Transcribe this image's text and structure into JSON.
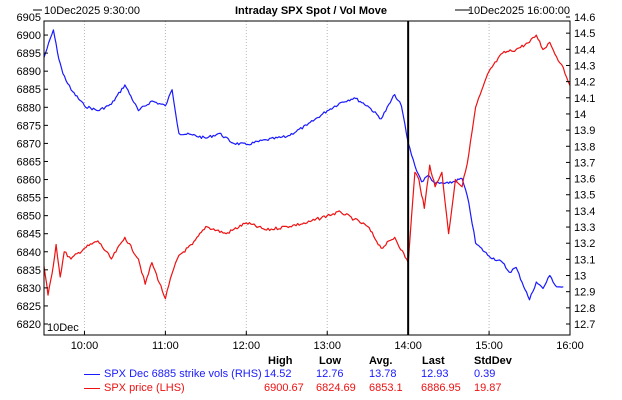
{
  "chart_data": {
    "type": "line",
    "title": "Intraday SPX Spot / Vol Move",
    "start_label": "10Dec2025  9:30:00",
    "end_label": "10Dec2025 16:00:00",
    "date_marker": "10Dec",
    "x_ticks": [
      "10:00",
      "11:00",
      "12:00",
      "13:00",
      "14:00",
      "15:00",
      "16:00"
    ],
    "x_range": [
      "09:30",
      "16:00"
    ],
    "vertical_marker": "14:00",
    "left_axis": {
      "range": [
        6820,
        6905
      ],
      "ticks": [
        6820,
        6825,
        6830,
        6835,
        6840,
        6845,
        6850,
        6855,
        6860,
        6865,
        6870,
        6875,
        6880,
        6885,
        6890,
        6895,
        6900,
        6905
      ]
    },
    "right_axis": {
      "range": [
        12.7,
        14.6
      ],
      "ticks": [
        12.7,
        12.8,
        12.9,
        13,
        13.1,
        13.2,
        13.3,
        13.4,
        13.5,
        13.6,
        13.7,
        13.8,
        13.9,
        14,
        14.1,
        14.2,
        14.3,
        14.4,
        14.5,
        14.6
      ]
    },
    "grid": "vertical dotted",
    "series": [
      {
        "name": "SPX Dec 6885 strike vols (RHS)",
        "axis": "right",
        "color": "#1a1aff",
        "x": [
          "09:30",
          "09:37",
          "09:40",
          "09:44",
          "09:50",
          "10:00",
          "10:10",
          "10:20",
          "10:30",
          "10:40",
          "10:50",
          "11:00",
          "11:05",
          "11:10",
          "11:20",
          "11:30",
          "11:40",
          "11:50",
          "12:00",
          "12:15",
          "12:30",
          "12:45",
          "13:00",
          "13:10",
          "13:20",
          "13:30",
          "13:40",
          "13:50",
          "13:55",
          "14:00",
          "14:05",
          "14:10",
          "14:15",
          "14:20",
          "14:30",
          "14:40",
          "14:45",
          "14:50",
          "15:00",
          "15:10",
          "15:15",
          "15:20",
          "15:30",
          "15:35",
          "15:40",
          "15:45",
          "15:50",
          "15:55"
        ],
        "y": [
          14.35,
          14.52,
          14.38,
          14.25,
          14.15,
          14.05,
          14.02,
          14.06,
          14.18,
          14.02,
          14.08,
          14.05,
          14.15,
          13.88,
          13.87,
          13.85,
          13.88,
          13.82,
          13.81,
          13.84,
          13.86,
          13.93,
          14.02,
          14.07,
          14.1,
          14.05,
          13.97,
          14.12,
          14.05,
          13.82,
          13.68,
          13.58,
          13.62,
          13.57,
          13.57,
          13.6,
          13.45,
          13.2,
          13.12,
          13.08,
          13.02,
          13.05,
          12.85,
          12.96,
          12.92,
          13.0,
          12.93,
          12.93
        ]
      },
      {
        "name": "SPX price (LHS)",
        "axis": "left",
        "color": "#ee1111",
        "x": [
          "09:30",
          "09:33",
          "09:36",
          "09:39",
          "09:42",
          "09:45",
          "09:50",
          "10:00",
          "10:10",
          "10:20",
          "10:30",
          "10:40",
          "10:45",
          "10:50",
          "11:00",
          "11:05",
          "11:10",
          "11:20",
          "11:30",
          "11:45",
          "12:00",
          "12:15",
          "12:30",
          "12:45",
          "13:00",
          "13:10",
          "13:20",
          "13:30",
          "13:40",
          "13:50",
          "14:00",
          "14:05",
          "14:08",
          "14:12",
          "14:16",
          "14:20",
          "14:25",
          "14:30",
          "14:35",
          "14:40",
          "14:45",
          "14:50",
          "15:00",
          "15:10",
          "15:20",
          "15:30",
          "15:35",
          "15:40",
          "15:45",
          "15:50",
          "15:55",
          "16:00"
        ],
        "y": [
          6836,
          6828,
          6834,
          6842,
          6833,
          6840,
          6838,
          6841,
          6843,
          6838,
          6844,
          6838,
          6831,
          6837,
          6827,
          6834,
          6839,
          6842,
          6847,
          6845,
          6848,
          6846,
          6847,
          6848,
          6850,
          6851,
          6849,
          6847,
          6841,
          6844,
          6837,
          6862,
          6860,
          6852,
          6864,
          6858,
          6862,
          6845,
          6860,
          6858,
          6867,
          6880,
          6890,
          6895,
          6896,
          6898,
          6900,
          6896,
          6898,
          6894,
          6891,
          6886
        ]
      }
    ],
    "stats": {
      "headers": [
        "High",
        "Low",
        "Avg.",
        "Last",
        "StdDev"
      ],
      "rows": [
        {
          "label": "SPX Dec 6885 strike vols (RHS)",
          "color": "#1a1aff",
          "values": [
            "14.52",
            "12.76",
            "13.78",
            "12.93",
            "0.39"
          ]
        },
        {
          "label": "SPX price (LHS)",
          "color": "#ee1111",
          "values": [
            "6900.67",
            "6824.69",
            "6853.1",
            "6886.95",
            "19.87"
          ]
        }
      ]
    }
  }
}
